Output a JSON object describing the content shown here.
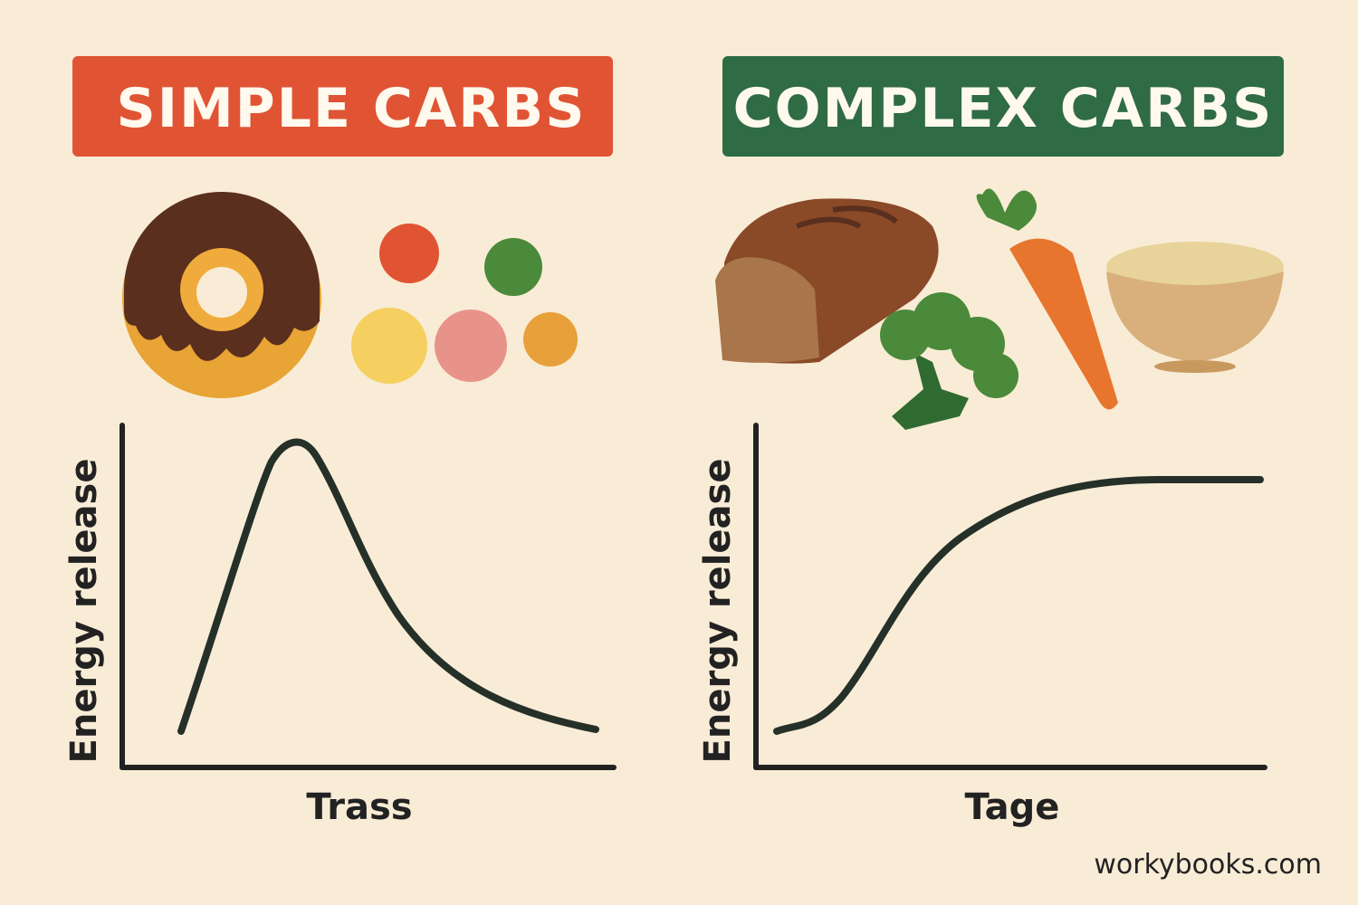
{
  "panels": [
    {
      "title": "SIMPLE CARBS",
      "y_label": "Energy release",
      "x_label": "Trass"
    },
    {
      "title": "COMPLEX CARBS",
      "y_label": "Energy release",
      "x_label": "Tage"
    }
  ],
  "footer": "workybooks.com"
}
